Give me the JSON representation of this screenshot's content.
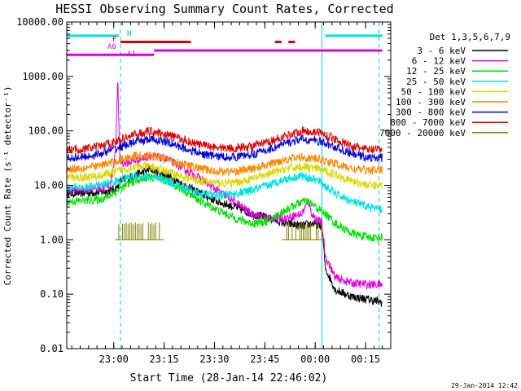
{
  "chart_data": {
    "type": "line",
    "title": "HESSI Observing Summary Count Rates, Corrected",
    "xlabel": "Start Time (28-Jan-14 22:46:02)",
    "ylabel": "Corrected Count Rate (s⁻¹ detector⁻¹)",
    "y_scale": "log",
    "ylim": [
      0.01,
      10000
    ],
    "xlim": [
      "22:46:02",
      "00:22:30"
    ],
    "y_tick_labels": [
      "0.01",
      "0.10",
      "1.00",
      "10.00",
      "100.00",
      "1000.00",
      "10000.00"
    ],
    "x_tick_labels": [
      "23:00",
      "23:15",
      "23:30",
      "23:45",
      "00:00",
      "00:15"
    ],
    "x_tick_minutes": [
      14,
      29,
      44,
      59,
      74,
      89
    ],
    "grid": false,
    "legend_position": "right",
    "legend_title": "Det 1,3,5,6,7,9",
    "timestamp": "29-Jan-2014 12:42",
    "flag_labels": {
      "n": "N",
      "f": "F",
      "a0": "A0",
      "a1": "A1"
    },
    "vertical_markers_min": [
      0,
      16,
      76,
      93
    ],
    "flag_bars": [
      {
        "label": "N",
        "color": "#00e0e0",
        "level": 5600,
        "spans_min": [
          [
            0,
            15.5
          ],
          [
            77,
            94
          ]
        ]
      },
      {
        "label": "F",
        "color": "#dd0000",
        "level": 4300,
        "spans_min": [
          [
            16,
            37
          ],
          [
            62,
            64
          ],
          [
            66,
            68
          ]
        ]
      },
      {
        "label": "A0",
        "color": "#e000e0",
        "level": 2500,
        "spans_min": [
          [
            0,
            26
          ]
        ]
      },
      {
        "label": "A1",
        "color": "#e000e0",
        "level": 3000,
        "spans_min": [
          [
            26,
            94
          ]
        ]
      }
    ],
    "series": [
      {
        "name": "3 - 6 keV",
        "color": "#000000",
        "x_min": [
          0,
          10,
          13,
          15,
          16,
          20,
          25,
          30,
          35,
          40,
          45,
          50,
          55,
          60,
          65,
          70,
          73,
          76,
          77,
          80,
          85,
          90,
          94
        ],
        "values": [
          7,
          7.5,
          8,
          9,
          12,
          15,
          20,
          15,
          10,
          7,
          5,
          4,
          3,
          2.5,
          2,
          1.8,
          2,
          1.8,
          0.3,
          0.12,
          0.09,
          0.08,
          0.07
        ]
      },
      {
        "name": "6 - 12 keV",
        "color": "#e000e0",
        "x_min": [
          0,
          10,
          13,
          14.5,
          15.2,
          15.8,
          17,
          20,
          25,
          30,
          35,
          40,
          45,
          50,
          55,
          60,
          65,
          70,
          72,
          73,
          74,
          76,
          77,
          80,
          85,
          90,
          94
        ],
        "values": [
          8,
          9,
          10,
          40,
          900,
          30,
          25,
          28,
          35,
          30,
          20,
          13,
          8,
          5,
          3,
          2.5,
          2.5,
          3,
          5,
          3,
          2.5,
          2,
          0.5,
          0.2,
          0.16,
          0.15,
          0.15
        ]
      },
      {
        "name": "12 - 25 keV",
        "color": "#00dd00",
        "x_min": [
          0,
          10,
          13,
          15,
          20,
          25,
          30,
          35,
          40,
          45,
          50,
          55,
          60,
          65,
          70,
          72,
          74,
          77,
          80,
          85,
          90,
          94
        ],
        "values": [
          5,
          5.5,
          6.5,
          8,
          12,
          14,
          12,
          8,
          5,
          3.5,
          2.5,
          2,
          2.2,
          3.5,
          5,
          5,
          4,
          3,
          2,
          1.3,
          1.1,
          1.1
        ]
      },
      {
        "name": "25 - 50 keV",
        "color": "#00e0e0",
        "x_min": [
          0,
          5,
          10,
          15,
          20,
          25,
          30,
          35,
          40,
          45,
          50,
          55,
          60,
          65,
          70,
          75,
          80,
          85,
          90,
          94
        ],
        "values": [
          9,
          9,
          10,
          12,
          15,
          14,
          12,
          9,
          7,
          6.5,
          7,
          8,
          10,
          13,
          15,
          12,
          7,
          5,
          4,
          3.5
        ]
      },
      {
        "name": "50 - 100 keV",
        "color": "#d8d800",
        "x_min": [
          0,
          5,
          10,
          15,
          20,
          25,
          30,
          35,
          40,
          45,
          50,
          55,
          60,
          65,
          70,
          75,
          80,
          85,
          90,
          94
        ],
        "values": [
          14,
          14,
          15,
          18,
          22,
          22,
          18,
          14,
          12,
          11,
          11,
          13,
          16,
          20,
          22,
          20,
          16,
          12,
          10,
          10
        ]
      },
      {
        "name": "100 - 300 keV",
        "color": "#ff8800",
        "x_min": [
          0,
          5,
          10,
          15,
          20,
          25,
          30,
          35,
          40,
          45,
          50,
          55,
          60,
          65,
          70,
          75,
          80,
          85,
          90,
          94
        ],
        "values": [
          20,
          21,
          23,
          28,
          35,
          35,
          30,
          24,
          20,
          18,
          18,
          20,
          24,
          30,
          33,
          30,
          25,
          20,
          19,
          19
        ]
      },
      {
        "name": "300 - 800 keV",
        "color": "#0000dd",
        "x_min": [
          0,
          5,
          10,
          15,
          20,
          25,
          30,
          35,
          40,
          45,
          50,
          55,
          60,
          65,
          70,
          75,
          80,
          85,
          90,
          94
        ],
        "values": [
          32,
          33,
          38,
          48,
          62,
          70,
          62,
          48,
          38,
          34,
          33,
          37,
          45,
          58,
          70,
          65,
          50,
          38,
          32,
          32
        ]
      },
      {
        "name": "800 - 7000 keV",
        "color": "#dd0000",
        "x_min": [
          0,
          5,
          10,
          15,
          20,
          25,
          30,
          35,
          40,
          45,
          50,
          55,
          60,
          65,
          70,
          75,
          80,
          85,
          90,
          94
        ],
        "values": [
          45,
          46,
          52,
          65,
          85,
          100,
          85,
          68,
          55,
          50,
          48,
          52,
          62,
          80,
          100,
          95,
          70,
          52,
          45,
          45
        ]
      },
      {
        "name": "7000 - 20000 keV",
        "color": "#808000",
        "x_min": [
          15,
          16.5,
          17,
          28,
          28.5,
          65,
          65.5,
          76
        ],
        "values": [
          1,
          1,
          2,
          2,
          1,
          1,
          2,
          2
        ]
      }
    ]
  }
}
